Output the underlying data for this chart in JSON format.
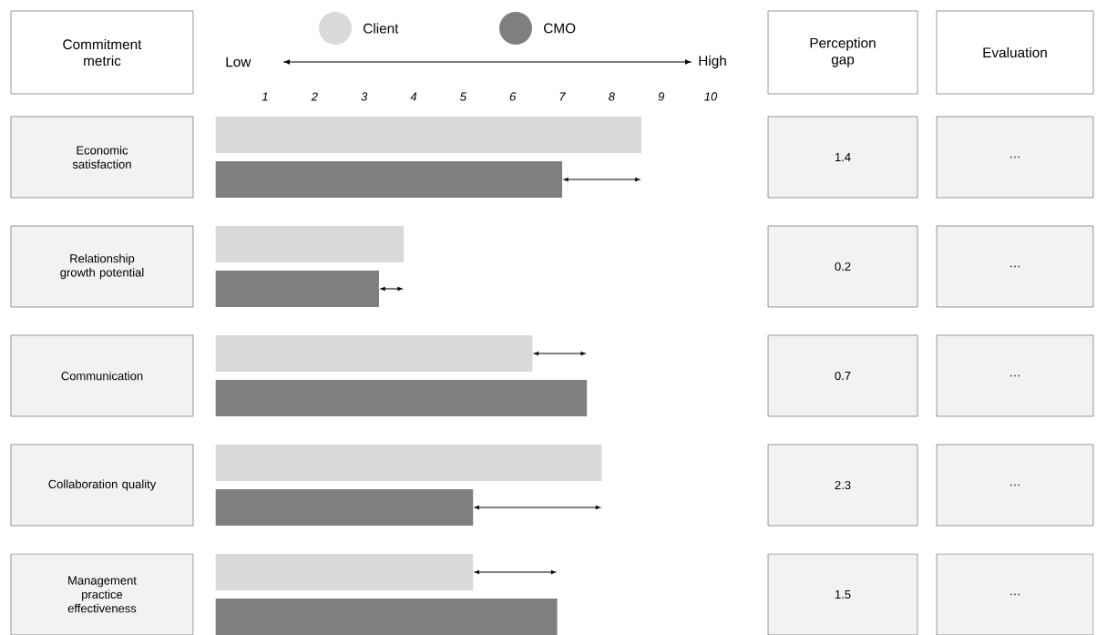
{
  "chart_data": {
    "type": "bar",
    "orientation": "horizontal",
    "ylabel": "Commitment metric",
    "categories": [
      "Economic satisfaction",
      "Relationship growth potential",
      "Communication",
      "Collaboration quality",
      "Management practice effectiveness"
    ],
    "series": [
      {
        "name": "Client",
        "color": "#d9d9d9",
        "values": [
          8.6,
          3.8,
          6.4,
          7.8,
          5.2
        ]
      },
      {
        "name": "CMO",
        "color": "#7f7f7f",
        "values": [
          7.0,
          3.3,
          7.5,
          5.2,
          6.9
        ]
      }
    ],
    "xlim": [
      0,
      10
    ],
    "xticks": [
      1,
      2,
      3,
      4,
      5,
      6,
      7,
      8,
      9,
      10
    ],
    "legend": "top",
    "annotations": [
      "Low",
      "High",
      "Perception gap",
      "Evaluation",
      "1.4",
      "0.2",
      "0.7",
      "2.3",
      "1.5",
      "…",
      "…",
      "…",
      "…",
      "…"
    ]
  }
}
